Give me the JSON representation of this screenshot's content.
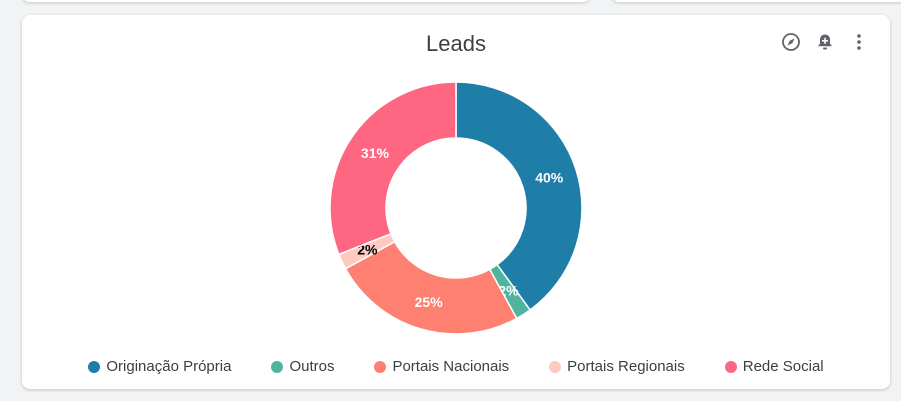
{
  "chart_data": {
    "type": "pie",
    "donut": true,
    "title": "Leads",
    "categories": [
      "Originação Própria",
      "Outros",
      "Portais Nacionais",
      "Portais Regionais",
      "Rede Social"
    ],
    "values": [
      40,
      2,
      25,
      2,
      31
    ],
    "labels": [
      "40%",
      "2%",
      "25%",
      "2%",
      "31%"
    ],
    "colors": [
      "#1f7ea7",
      "#4fb3a0",
      "#fd8070",
      "#ffc9c2",
      "#fe6681"
    ],
    "label_colors": [
      "#ffffff",
      "#ffffff",
      "#ffffff",
      "#000000",
      "#ffffff"
    ],
    "legend_position": "bottom"
  },
  "toolbar": {
    "icons": [
      "compass-icon",
      "add-alert-icon",
      "more-vert-icon"
    ]
  }
}
